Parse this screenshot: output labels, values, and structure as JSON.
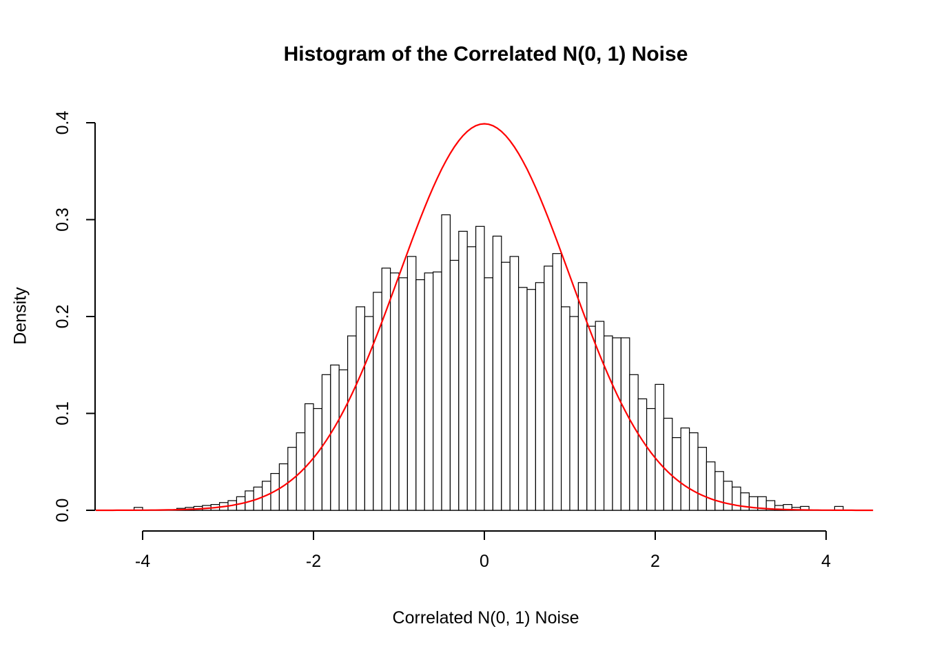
{
  "chart_data": {
    "type": "bar",
    "subtype": "histogram-with-density-overlay",
    "title": "Histogram of the Correlated N(0, 1) Noise",
    "xlabel": "Correlated N(0, 1) Noise",
    "ylabel": "Density",
    "xlim": [
      -4.55,
      4.55
    ],
    "ylim": [
      0.0,
      0.4
    ],
    "grid": false,
    "x_ticks": [
      -4,
      -2,
      0,
      2,
      4
    ],
    "x_tick_labels": [
      "-4",
      "-2",
      "0",
      "2",
      "4"
    ],
    "y_ticks": [
      0.0,
      0.1,
      0.2,
      0.3,
      0.4
    ],
    "y_tick_labels": [
      "0.0",
      "0.1",
      "0.2",
      "0.3",
      "0.4"
    ],
    "bin_start": -4.1,
    "bin_width": 0.1,
    "densities": [
      0.003,
      0,
      0,
      0,
      0,
      0.002,
      0.003,
      0.004,
      0.005,
      0.006,
      0.008,
      0.01,
      0.014,
      0.02,
      0.024,
      0.03,
      0.038,
      0.048,
      0.065,
      0.08,
      0.11,
      0.105,
      0.14,
      0.15,
      0.145,
      0.18,
      0.21,
      0.2,
      0.225,
      0.25,
      0.245,
      0.24,
      0.262,
      0.238,
      0.245,
      0.246,
      0.305,
      0.258,
      0.288,
      0.272,
      0.293,
      0.24,
      0.283,
      0.256,
      0.262,
      0.23,
      0.228,
      0.235,
      0.252,
      0.265,
      0.21,
      0.2,
      0.235,
      0.19,
      0.195,
      0.18,
      0.178,
      0.178,
      0.14,
      0.115,
      0.105,
      0.13,
      0.095,
      0.075,
      0.085,
      0.08,
      0.065,
      0.05,
      0.04,
      0.03,
      0.024,
      0.018,
      0.014,
      0.014,
      0.01,
      0.005,
      0.006,
      0.003,
      0.004,
      0,
      0,
      0,
      0.004
    ],
    "bar_fill": "#FFFFFF",
    "bar_stroke": "#000000",
    "overlay_curve": {
      "type": "normal_pdf",
      "mean": 0,
      "sd": 1,
      "color": "#FF0000",
      "peak_density": 0.3989
    }
  }
}
